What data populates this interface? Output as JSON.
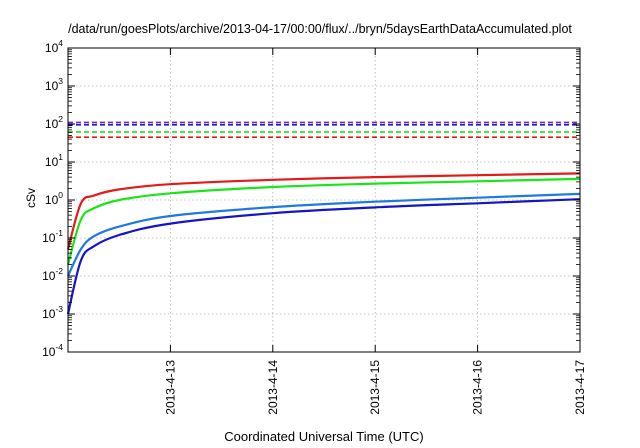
{
  "chart_data": {
    "type": "line",
    "title": "/data/run/goesPlots/archive/2013-04-17/00:00/flux/../bryn/5daysEarthDataAccumulated.plot",
    "xlabel": "Coordinated Universal Time (UTC)",
    "ylabel": "cSv",
    "y_scale": "log",
    "ylim": [
      0.0001,
      10000
    ],
    "y_ticks": [
      {
        "base": "10",
        "exp": "-4"
      },
      {
        "base": "10",
        "exp": "-3"
      },
      {
        "base": "10",
        "exp": "-2"
      },
      {
        "base": "10",
        "exp": "-1"
      },
      {
        "base": "10",
        "exp": "0"
      },
      {
        "base": "10",
        "exp": "1"
      },
      {
        "base": "10",
        "exp": "2"
      },
      {
        "base": "10",
        "exp": "3"
      },
      {
        "base": "10",
        "exp": "4"
      }
    ],
    "xlim": [
      "2013-04-12 00:00",
      "2013-04-17 00:00"
    ],
    "x_ticks": [
      "2013-4-13",
      "2013-4-14",
      "2013-4-15",
      "2013-4-16",
      "2013-4-17"
    ],
    "grid": true,
    "series": [
      {
        "style": "dashed",
        "color": "#7b1fd6",
        "points": [
          [
            "2013-04-12 00:00",
            110
          ],
          [
            "2013-04-17 00:00",
            110
          ]
        ]
      },
      {
        "style": "dashed",
        "color": "#1a1ae6",
        "points": [
          [
            "2013-04-12 00:00",
            95
          ],
          [
            "2013-04-17 00:00",
            95
          ]
        ]
      },
      {
        "style": "dashed",
        "color": "#19e619",
        "points": [
          [
            "2013-04-12 00:00",
            62
          ],
          [
            "2013-04-17 00:00",
            62
          ]
        ]
      },
      {
        "style": "dashed",
        "color": "#e61919",
        "points": [
          [
            "2013-04-12 00:00",
            45
          ],
          [
            "2013-04-17 00:00",
            45
          ]
        ]
      },
      {
        "style": "solid",
        "color": "#e61919",
        "points": [
          [
            "2013-04-12 00:00",
            0.05
          ],
          [
            "2013-04-12 03:00",
            0.8
          ],
          [
            "2013-04-12 06:00",
            1.3
          ],
          [
            "2013-04-12 12:00",
            1.9
          ],
          [
            "2013-04-13 00:00",
            2.6
          ],
          [
            "2013-04-14 00:00",
            3.4
          ],
          [
            "2013-04-15 00:00",
            4.0
          ],
          [
            "2013-04-16 00:00",
            4.5
          ],
          [
            "2013-04-17 00:00",
            5.0
          ]
        ]
      },
      {
        "style": "solid",
        "color": "#19e619",
        "points": [
          [
            "2013-04-12 00:00",
            0.02
          ],
          [
            "2013-04-12 03:00",
            0.3
          ],
          [
            "2013-04-12 06:00",
            0.6
          ],
          [
            "2013-04-12 12:00",
            1.0
          ],
          [
            "2013-04-13 00:00",
            1.5
          ],
          [
            "2013-04-14 00:00",
            2.2
          ],
          [
            "2013-04-15 00:00",
            2.7
          ],
          [
            "2013-04-16 00:00",
            3.1
          ],
          [
            "2013-04-17 00:00",
            3.6
          ]
        ]
      },
      {
        "style": "solid",
        "color": "#1e78e6",
        "points": [
          [
            "2013-04-12 00:00",
            0.01
          ],
          [
            "2013-04-12 03:00",
            0.05
          ],
          [
            "2013-04-12 06:00",
            0.11
          ],
          [
            "2013-04-12 12:00",
            0.2
          ],
          [
            "2013-04-13 00:00",
            0.38
          ],
          [
            "2013-04-14 00:00",
            0.65
          ],
          [
            "2013-04-15 00:00",
            0.9
          ],
          [
            "2013-04-16 00:00",
            1.15
          ],
          [
            "2013-04-17 00:00",
            1.45
          ]
        ]
      },
      {
        "style": "solid",
        "color": "#1414c8",
        "points": [
          [
            "2013-04-12 00:00",
            0.001
          ],
          [
            "2013-04-12 03:00",
            0.025
          ],
          [
            "2013-04-12 06:00",
            0.06
          ],
          [
            "2013-04-12 12:00",
            0.12
          ],
          [
            "2013-04-13 00:00",
            0.24
          ],
          [
            "2013-04-14 00:00",
            0.45
          ],
          [
            "2013-04-15 00:00",
            0.64
          ],
          [
            "2013-04-16 00:00",
            0.82
          ],
          [
            "2013-04-17 00:00",
            1.05
          ]
        ]
      }
    ]
  }
}
